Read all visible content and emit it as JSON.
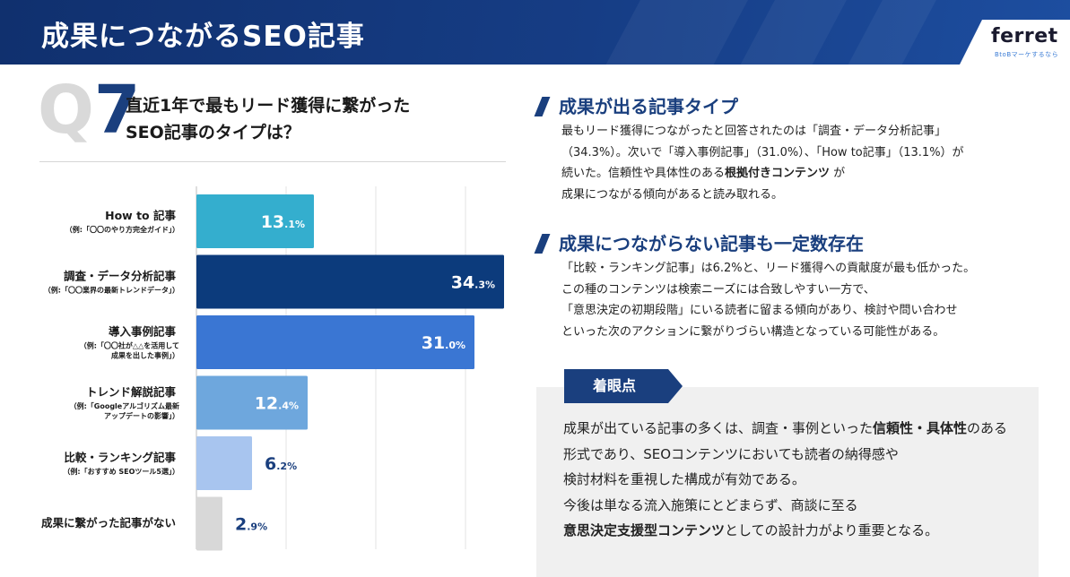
{
  "header": {
    "title": "成果につながるSEO記事"
  },
  "logo": {
    "name": "ferret",
    "tagline": "BtoBマーケするなら"
  },
  "question": {
    "label_q": "Q",
    "label_num": "7",
    "line1": "直近1年で最もリード獲得に繋がった",
    "line2": "SEO記事のタイプは？"
  },
  "chart_data": {
    "type": "bar",
    "orientation": "horizontal",
    "unit": "%",
    "xlim": [
      0,
      40
    ],
    "categories": [
      {
        "title": "How to 記事",
        "notes": [
          "（例:「〇〇のやり方完全ガイド」）"
        ]
      },
      {
        "title": "調査・データ分析記事",
        "notes": [
          "（例:「〇〇業界の最新トレンドデータ」）"
        ]
      },
      {
        "title": "導入事例記事",
        "notes": [
          "（例:「〇〇社が△△を活用して",
          "成果を出した事例」）"
        ]
      },
      {
        "title": "トレンド解説記事",
        "notes": [
          "（例:「Googleアルゴリズム最新",
          "アップデートの影響」）"
        ]
      },
      {
        "title": "比較・ランキング記事",
        "notes": [
          "（例:「おすすめ SEOツール5選」）"
        ]
      },
      {
        "title": "成果に繋がった記事がない",
        "notes": []
      }
    ],
    "values": [
      13.1,
      34.3,
      31.0,
      12.4,
      6.2,
      2.9
    ],
    "value_labels": [
      {
        "int": "13",
        "dec": ".1%"
      },
      {
        "int": "34",
        "dec": ".3%"
      },
      {
        "int": "31",
        "dec": ".0%"
      },
      {
        "int": "12",
        "dec": ".4%"
      },
      {
        "int": "6",
        "dec": ".2%"
      },
      {
        "int": "2",
        "dec": ".9%"
      }
    ],
    "colors": [
      "#34aece",
      "#0c3b7c",
      "#3a76d3",
      "#6ea7dd",
      "#a8c5ef",
      "#d8d8d8"
    ],
    "label_inside": [
      true,
      true,
      true,
      true,
      false,
      false
    ]
  },
  "section1": {
    "title": "成果が出る記事タイプ",
    "lines": [
      [
        "最もリード獲得につながったと回答されたのは「調査・データ分析記事」"
      ],
      [
        "（34.3%）。次いで「導入事例記事」（31.0%）、「How to記事」（13.1%）が"
      ],
      [
        "続いた。信頼性や具体性のある",
        {
          "b": "根拠付きコンテンツ"
        },
        " が"
      ],
      [
        "成果につながる傾向があると読み取れる。"
      ]
    ]
  },
  "section2": {
    "title": "成果につながらない記事も一定数存在",
    "lines": [
      [
        "「比較・ランキング記事」は6.2%と、リード獲得への貢献度が最も低かった。"
      ],
      [
        "この種のコンテンツは検索ニーズには合致しやすい一方で、"
      ],
      [
        "「意思決定の初期段階」にいる読者に留まる傾向があり、検討や問い合わせ"
      ],
      [
        "といった次のアクションに繋がりづらい構造となっている可能性がある。"
      ]
    ]
  },
  "focus": {
    "tag": "着眼点",
    "lines": [
      [
        "成果が出ている記事の多くは、調査・事例といった",
        {
          "b": "信頼性・具体性"
        },
        "のある"
      ],
      [
        "形式であり、SEOコンテンツにおいても読者の納得感や"
      ],
      [
        "検討材料を重視した構成が有効である。"
      ],
      [
        "今後は単なる流入施策にとどまらず、商談に至る"
      ],
      [
        {
          "b": "意思決定支援型コンテンツ"
        },
        "としての設計力がより重要となる。"
      ]
    ]
  }
}
